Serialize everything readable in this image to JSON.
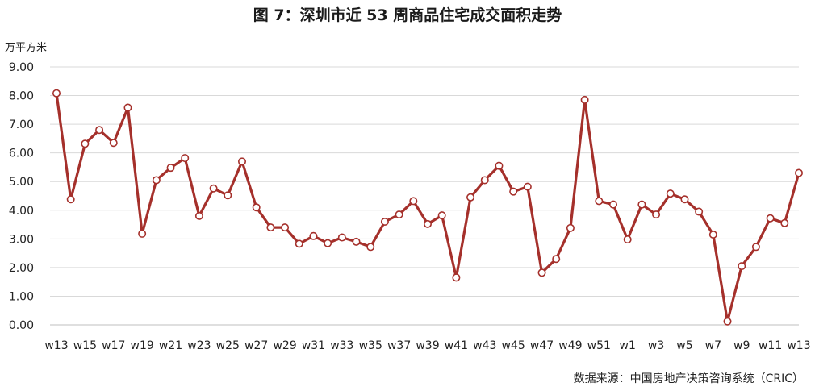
{
  "chart_data": {
    "type": "line",
    "title": "图 7：深圳市近 53 周商品住宅成交面积走势",
    "ylabel": "万平方米",
    "ylim": [
      0,
      9
    ],
    "y_ticks": [
      "0.00",
      "1.00",
      "2.00",
      "3.00",
      "4.00",
      "5.00",
      "6.00",
      "7.00",
      "8.00",
      "9.00"
    ],
    "grid": "horizontal",
    "x_tick_labels": [
      "w13",
      "w15",
      "w17",
      "w19",
      "w21",
      "w23",
      "w25",
      "w27",
      "w29",
      "w31",
      "w33",
      "w35",
      "w37",
      "w39",
      "w41",
      "w43",
      "w45",
      "w47",
      "w49",
      "w51",
      "w1",
      "w3",
      "w5",
      "w7",
      "w9",
      "w11",
      "w13"
    ],
    "series": [
      {
        "color": "#a5302b",
        "values": [
          8.08,
          4.38,
          6.32,
          6.8,
          6.35,
          7.58,
          3.18,
          5.05,
          5.48,
          5.82,
          3.8,
          4.76,
          4.52,
          5.7,
          4.1,
          3.4,
          3.4,
          2.83,
          3.1,
          2.85,
          3.05,
          2.9,
          2.72,
          3.6,
          3.85,
          4.32,
          3.52,
          3.82,
          1.65,
          4.45,
          5.05,
          5.55,
          4.65,
          4.82,
          1.82,
          2.3,
          3.38,
          7.85,
          4.32,
          4.2,
          2.98,
          4.2,
          3.85,
          4.58,
          4.38,
          3.95,
          3.15,
          0.12,
          2.05,
          2.72,
          3.72,
          3.55,
          5.3
        ]
      }
    ],
    "source": "数据来源：中国房地产决策咨询系统（CRIC）"
  }
}
